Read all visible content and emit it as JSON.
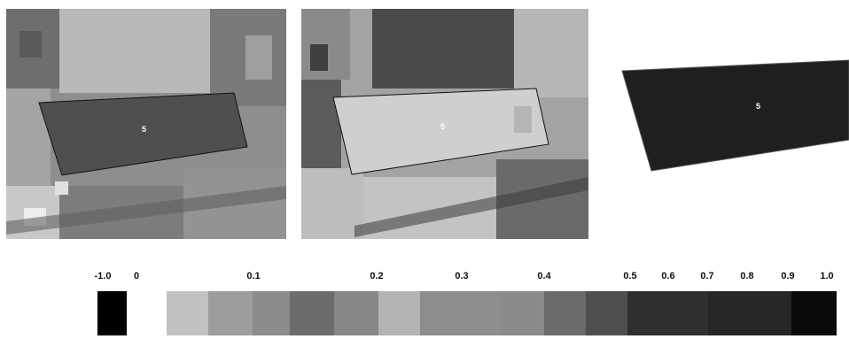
{
  "panels": [
    {
      "id": "panel-before",
      "label": "5"
    },
    {
      "id": "panel-after",
      "label": "5"
    },
    {
      "id": "panel-index",
      "label": "5"
    }
  ],
  "legend": {
    "ticks": [
      "-1.0",
      "0",
      "0.1",
      "0.2",
      "0.3",
      "0.4",
      "0.5",
      "0.6",
      "0.7",
      "0.8",
      "0.9",
      "1.0"
    ],
    "colors": [
      "#000000",
      "#ffffff",
      "#c2c2c2",
      "#9d9d9d",
      "#8c8c8c",
      "#6c6c6c",
      "#878787",
      "#b3b3b3",
      "#8d8d8d",
      "#8a8a8a",
      "#6b6b6b",
      "#4e4e4e",
      "#2f2f2f",
      "#262626",
      "#0a0a0a"
    ]
  }
}
